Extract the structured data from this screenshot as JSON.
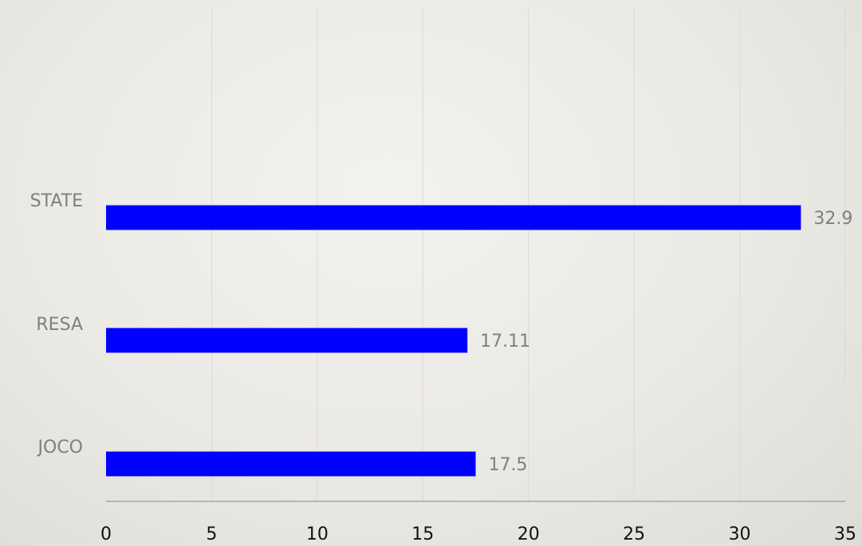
{
  "chart_data": {
    "type": "bar",
    "orientation": "horizontal",
    "categories": [
      "STATE",
      "RESA",
      "JOCO"
    ],
    "values": [
      32.9,
      17.11,
      17.5
    ],
    "data_labels": [
      "32.9",
      "17.11",
      "17.5"
    ],
    "xlim": [
      0,
      35
    ],
    "x_ticks": [
      0,
      5,
      10,
      15,
      20,
      25,
      30,
      35
    ],
    "x_tick_labels": [
      "0",
      "5",
      "10",
      "15",
      "20",
      "25",
      "30",
      "35"
    ],
    "grid": true,
    "bar_color": "#0000ff",
    "label_color": "#7f7f7f",
    "tick_label_color": "#111111",
    "axis_color": "#9aa6c4"
  }
}
